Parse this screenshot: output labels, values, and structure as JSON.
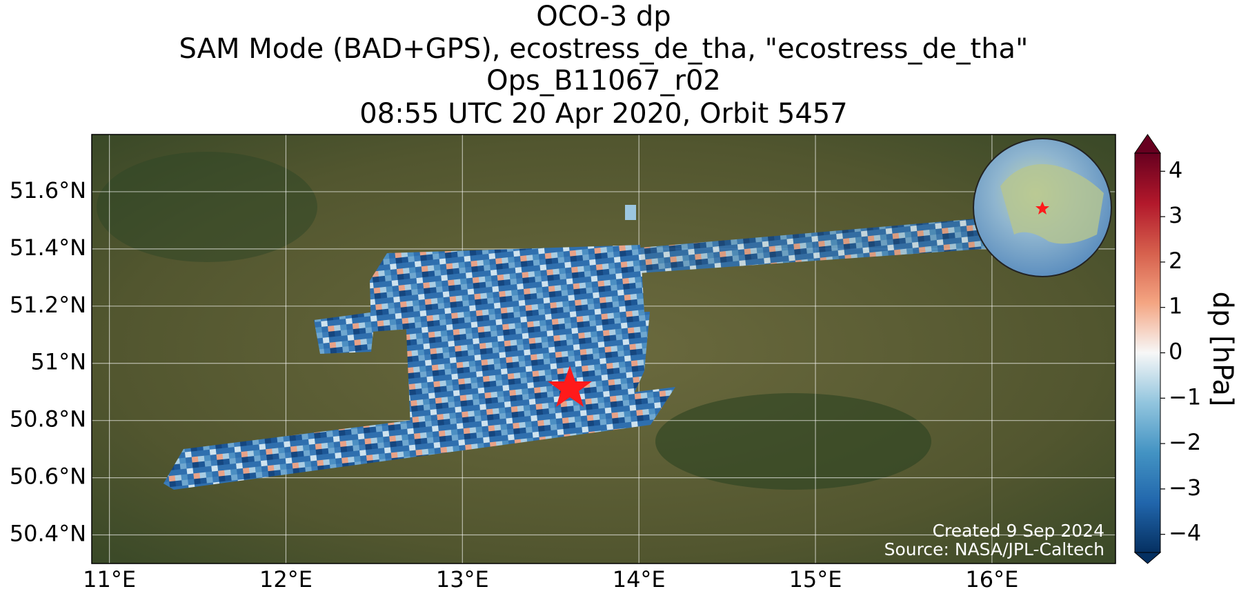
{
  "chart_data": {
    "type": "map",
    "title": [
      "OCO-3 dp",
      "SAM Mode (BAD+GPS), ecostress_de_tha, \"ecostress_de_tha\"",
      "Ops_B11067_r02",
      "08:55 UTC 20 Apr 2020, Orbit 5457"
    ],
    "xlim": [
      10.9,
      16.7
    ],
    "xticks": [
      {
        "value": 11,
        "label": "11°E"
      },
      {
        "value": 12,
        "label": "12°E"
      },
      {
        "value": 13,
        "label": "13°E"
      },
      {
        "value": 14,
        "label": "14°E"
      },
      {
        "value": 15,
        "label": "15°E"
      },
      {
        "value": 16,
        "label": "16°E"
      }
    ],
    "ylim": [
      50.3,
      51.8
    ],
    "yticks": [
      {
        "value": 50.4,
        "label": "50.4°N"
      },
      {
        "value": 50.6,
        "label": "50.6°N"
      },
      {
        "value": 50.8,
        "label": "50.8°N"
      },
      {
        "value": 51,
        "label": "51°N"
      },
      {
        "value": 51.2,
        "label": "51.2°N"
      },
      {
        "value": 51.4,
        "label": "51.4°N"
      },
      {
        "value": 51.6,
        "label": "51.6°N"
      }
    ],
    "grid": true,
    "colorbar": {
      "label": "dp [hPa]",
      "lim": [
        -4.4,
        4.4
      ],
      "ticks": [
        {
          "value": -4,
          "label": "−4"
        },
        {
          "value": -3,
          "label": "−3"
        },
        {
          "value": -2,
          "label": "−2"
        },
        {
          "value": -1,
          "label": "−1"
        },
        0,
        1,
        2,
        3,
        4
      ],
      "colormap": [
        "#053061",
        "#2166ac",
        "#4393c3",
        "#92c5de",
        "#f7f7f7",
        "#f4a582",
        "#d6604d",
        "#b2182b",
        "#67001f"
      ]
    },
    "credits": [
      "Created 9 Sep 2024",
      "Source: NASA/JPL-Caltech"
    ]
  }
}
